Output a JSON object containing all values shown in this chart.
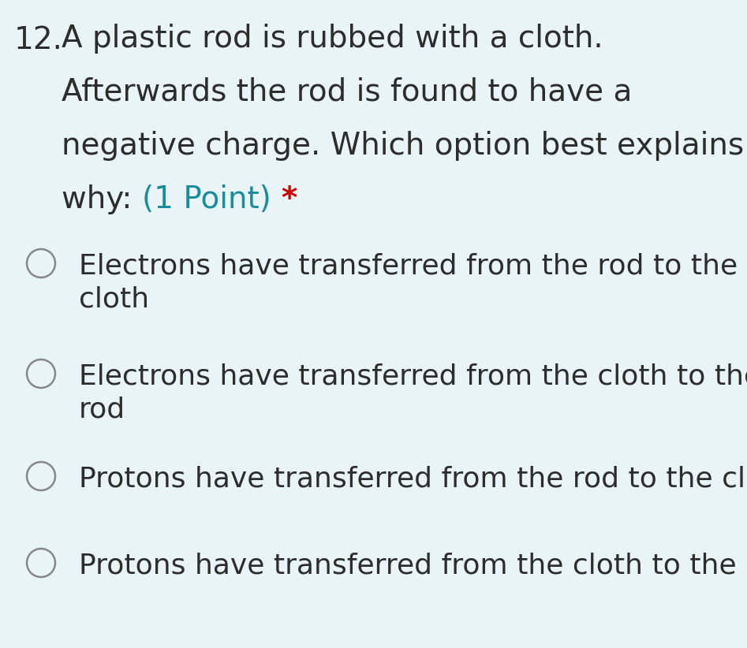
{
  "background_color": "#e8f4f5",
  "question_number": "12.",
  "question_lines": [
    "A plastic rod is rubbed with a cloth.",
    "Afterwards the rod is found to have a",
    "negative charge. Which option best explains"
  ],
  "question_line4_black": "why: ",
  "question_line4_teal": "(1 Point) ",
  "question_line4_red": "*",
  "options": [
    [
      "Electrons have transferred from the rod to the",
      "cloth"
    ],
    [
      "Electrons have transferred from the cloth to the",
      "rod"
    ],
    [
      "Protons have transferred from the rod to the cloth"
    ],
    [
      "Protons have transferred from the cloth to the rod"
    ]
  ],
  "text_color": "#2d2d2d",
  "teal_color": "#1a8c9c",
  "red_color": "#cc0000",
  "circle_edge_color": "#888888",
  "circle_face_color": "#e8f4f5",
  "font_size_question": 28,
  "font_size_options": 26,
  "figwidth": 9.47,
  "figheight": 8.22,
  "dpi": 100
}
